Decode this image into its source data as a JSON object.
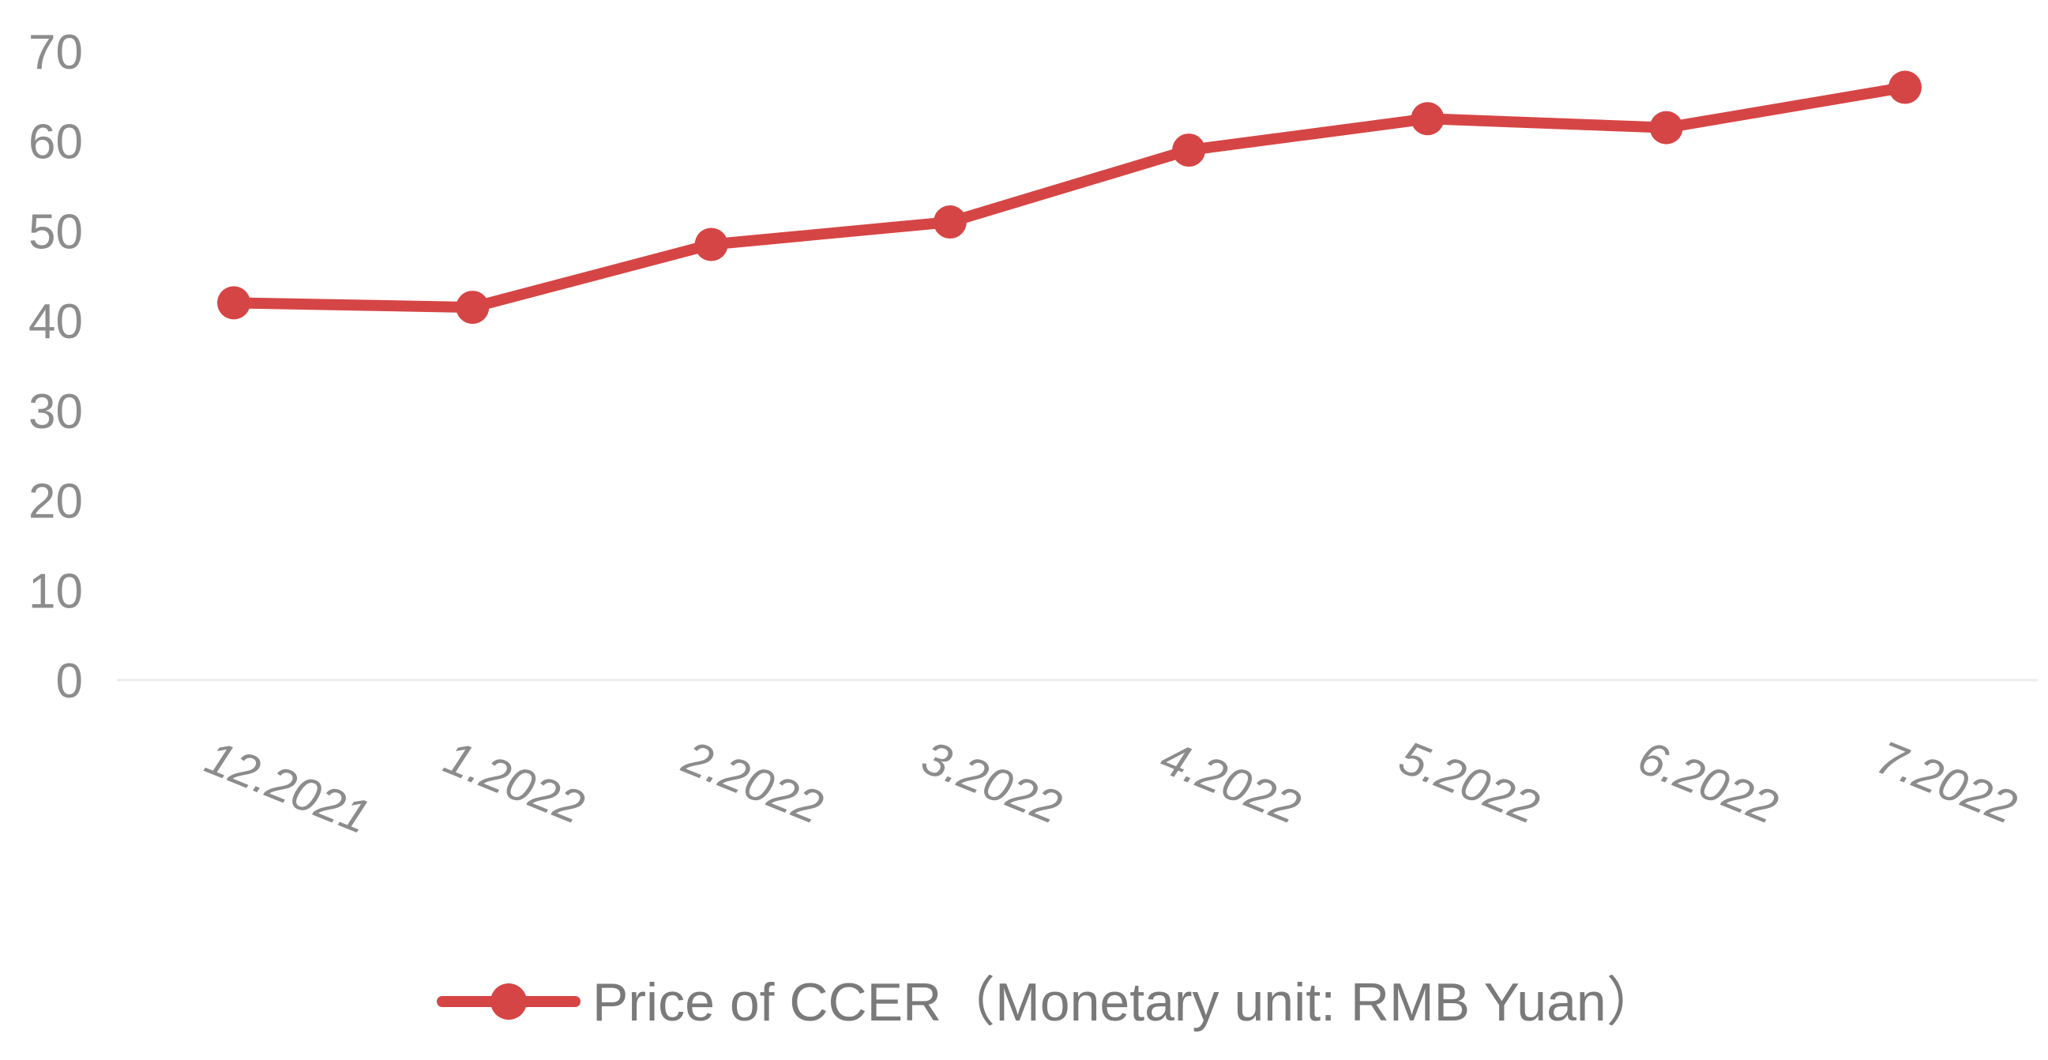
{
  "chart_data": {
    "type": "line",
    "categories": [
      "12.2021",
      "1.2022",
      "2.2022",
      "3.2022",
      "4.2022",
      "5.2022",
      "6.2022",
      "7.2022"
    ],
    "series": [
      {
        "name": "Price of CCER（Monetary unit: RMB Yuan）",
        "values": [
          42,
          41.5,
          48.5,
          51,
          59,
          62.5,
          61.5,
          66
        ],
        "color": "#d64545"
      }
    ],
    "ylim": [
      0,
      70
    ],
    "yticks": [
      "0",
      "10",
      "20",
      "30",
      "40",
      "50",
      "60",
      "70"
    ],
    "title": "",
    "xlabel": "",
    "ylabel": "",
    "grid": false,
    "legend_position": "bottom",
    "marker": "circle"
  }
}
